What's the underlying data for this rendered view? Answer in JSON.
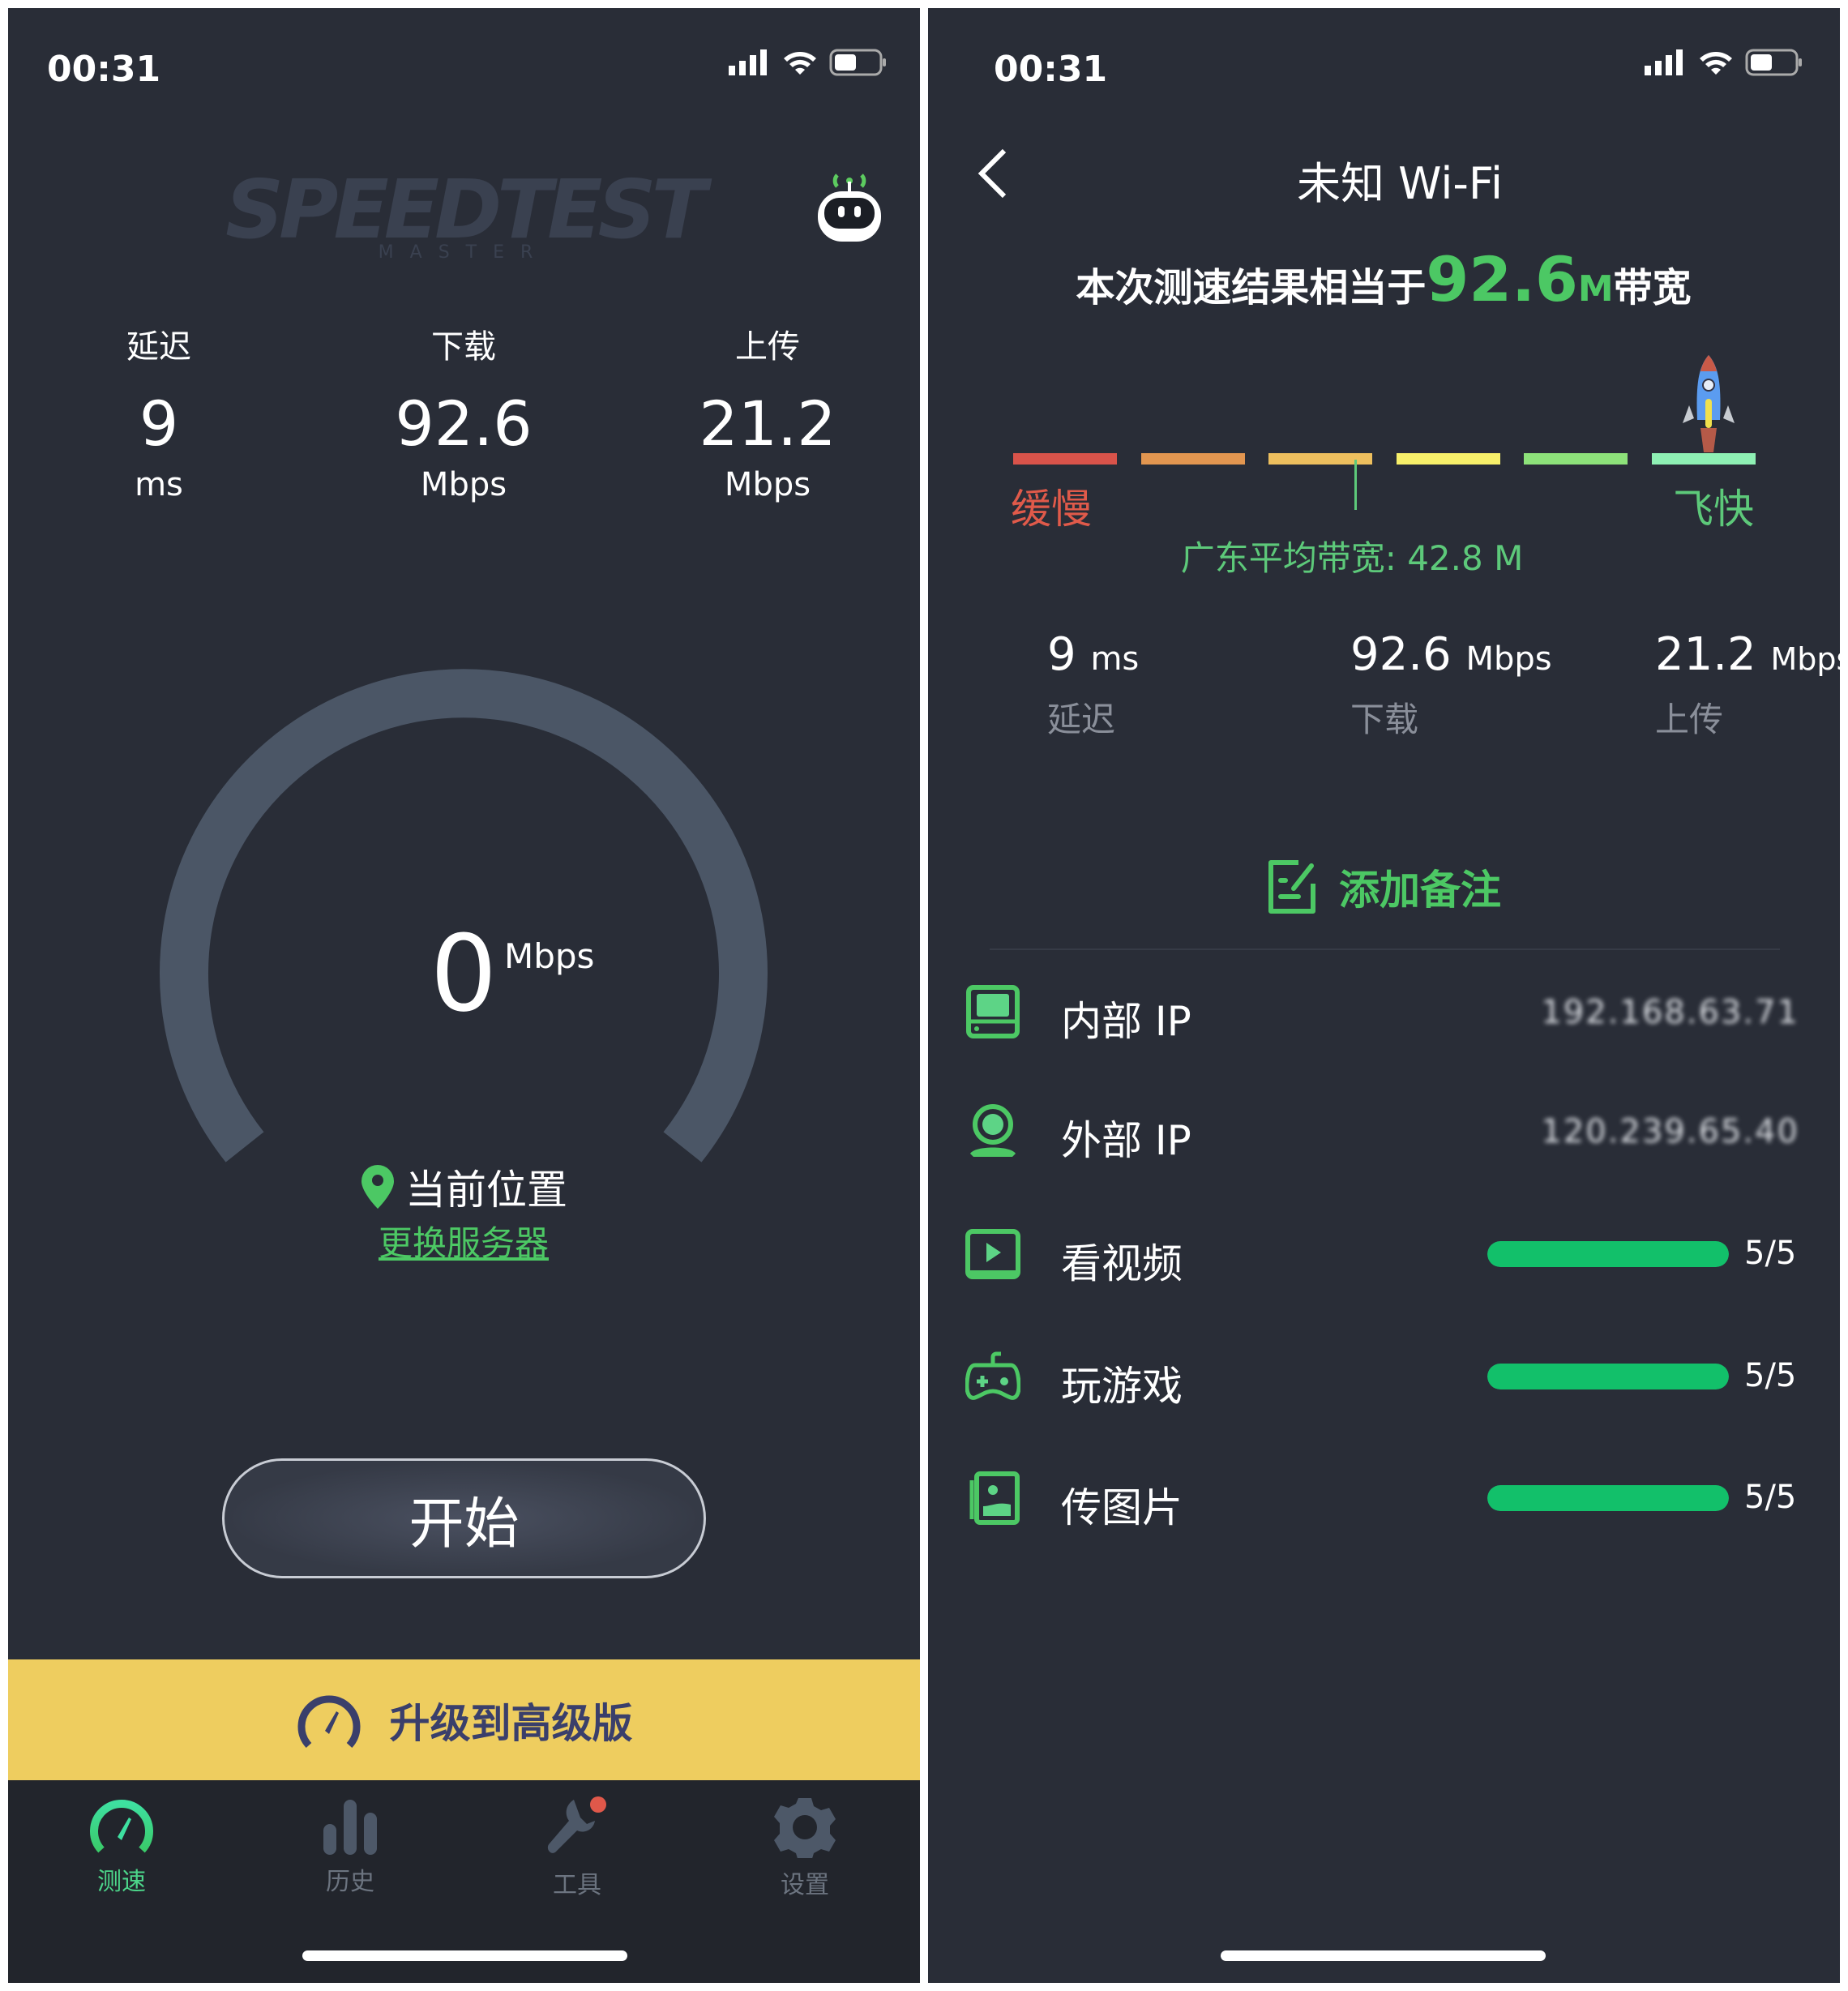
{
  "status_bar": {
    "time": "00:31"
  },
  "left": {
    "logo": "SPEEDTEST MASTER",
    "stats": [
      {
        "label": "延迟",
        "value": "9",
        "unit": "ms"
      },
      {
        "label": "下载",
        "value": "92.6",
        "unit": "Mbps"
      },
      {
        "label": "上传",
        "value": "21.2",
        "unit": "Mbps"
      }
    ],
    "gauge": {
      "value": "0",
      "unit": "Mbps"
    },
    "location": "当前位置",
    "change_server": "更换服务器",
    "start_button": "开始",
    "upgrade_banner": "升级到高级版",
    "tabs": [
      {
        "label": "测速",
        "icon": "speedometer-icon",
        "active": true
      },
      {
        "label": "历史",
        "icon": "bar-chart-icon",
        "active": false
      },
      {
        "label": "工具",
        "icon": "wrench-icon",
        "active": false,
        "badge": true
      },
      {
        "label": "设置",
        "icon": "gear-icon",
        "active": false
      }
    ]
  },
  "right": {
    "title": "未知 Wi-Fi",
    "headline_prefix": "本次测速结果相当于",
    "headline_value": "92.6",
    "headline_unit": "M",
    "headline_suffix": "带宽",
    "scale": {
      "colors": [
        "#d9534a",
        "#e29650",
        "#edbf5e",
        "#f7f06a",
        "#8de27a",
        "#8ef0b4"
      ],
      "slow_label": "缓慢",
      "fast_label": "飞快",
      "average_label": "广东平均带宽: 42.8 M"
    },
    "stats": [
      {
        "value": "9",
        "unit": "ms",
        "label": "延迟"
      },
      {
        "value": "92.6",
        "unit": "Mbps",
        "label": "下载"
      },
      {
        "value": "21.2",
        "unit": "Mbps",
        "label": "上传"
      }
    ],
    "add_note": "添加备注",
    "rows": [
      {
        "label": "内部 IP",
        "value": "192.168.63.71"
      },
      {
        "label": "外部 IP",
        "value": "120.239.65.40"
      },
      {
        "label": "看视频",
        "score": "5/5",
        "fraction": 1.0
      },
      {
        "label": "玩游戏",
        "score": "5/5",
        "fraction": 1.0
      },
      {
        "label": "传图片",
        "score": "5/5",
        "fraction": 1.0
      }
    ]
  },
  "colors": {
    "accent_green": "#4cc864",
    "banner": "#eecd5f",
    "progress": "#12c06a",
    "background": "#292d37"
  }
}
